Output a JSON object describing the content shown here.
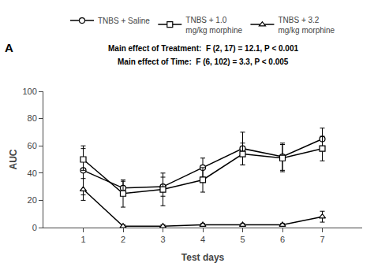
{
  "chart_data": {
    "type": "line",
    "x": [
      1,
      2,
      3,
      4,
      5,
      6,
      7
    ],
    "xlabel": "Test days",
    "ylabel": "AUC",
    "xlim": [
      0,
      8
    ],
    "xticks": [
      1,
      2,
      3,
      4,
      5,
      6,
      7
    ],
    "ylim": [
      0,
      100
    ],
    "yticks": [
      0,
      20,
      40,
      60,
      80,
      100
    ],
    "grid": false,
    "legend": "top",
    "annotations": [
      "A",
      "Main effect of Treatment:  F (2, 17) = 12.1, P < 0.001",
      "Main effect of Time:  F (6, 102) = 3.3, P < 0.005"
    ],
    "series": [
      {
        "name": "TNBS + Saline",
        "color": "#000000",
        "marker": "circle",
        "values": [
          42,
          29,
          30,
          44,
          58,
          52,
          65
        ],
        "errors": [
          18,
          5,
          7,
          7,
          12,
          10,
          8
        ]
      },
      {
        "name": "TNBS + 1.0\nmg/kg morphine",
        "color": "#000000",
        "marker": "square",
        "values": [
          50,
          25,
          28,
          35,
          54,
          51,
          58
        ],
        "errors": [
          8,
          10,
          12,
          9,
          8,
          10,
          9
        ]
      },
      {
        "name": "TNBS + 3.2\nmg/kg morphine",
        "color": "#000000",
        "marker": "triangle",
        "values": [
          28,
          1,
          1,
          2,
          2,
          2,
          8
        ],
        "errors": [
          8,
          1,
          1,
          1,
          1,
          1,
          4
        ]
      }
    ]
  }
}
